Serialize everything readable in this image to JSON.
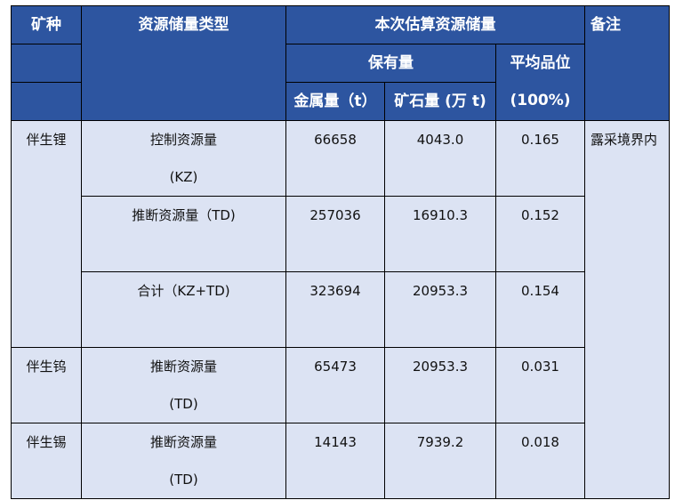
{
  "header": {
    "mineral": "矿种",
    "type": "资源储量类型",
    "estimate": "本次估算资源储量",
    "remarks": "备注",
    "retained": "保有量",
    "grade_line1": "平均品位",
    "grade_line2": "(100%)",
    "metal": "金属量（t）",
    "ore": "矿石量 (万 t)"
  },
  "rows": [
    {
      "mineral": "伴生锂",
      "type_line1": "控制资源量",
      "type_line2": "(KZ)",
      "metal": "66658",
      "ore": "4043.0",
      "grade": "0.165"
    },
    {
      "type_line1": "推断资源量（TD)",
      "type_line2": "",
      "metal": "257036",
      "ore": "16910.3",
      "grade": "0.152"
    },
    {
      "type_line1": "合计（KZ+TD)",
      "type_line2": "",
      "metal": "323694",
      "ore": "20953.3",
      "grade": "0.154"
    },
    {
      "mineral": "伴生钨",
      "type_line1": "推断资源量",
      "type_line2": "(TD)",
      "metal": "65473",
      "ore": "20953.3",
      "grade": "0.031"
    },
    {
      "mineral": "伴生锡",
      "type_line1": "推断资源量",
      "type_line2": "(TD)",
      "metal": "14143",
      "ore": "7939.2",
      "grade": "0.018"
    }
  ],
  "remarks_value": "露采境界内",
  "colors": {
    "header_bg": "#2D55A0",
    "body_bg": "#DCE3F3"
  }
}
